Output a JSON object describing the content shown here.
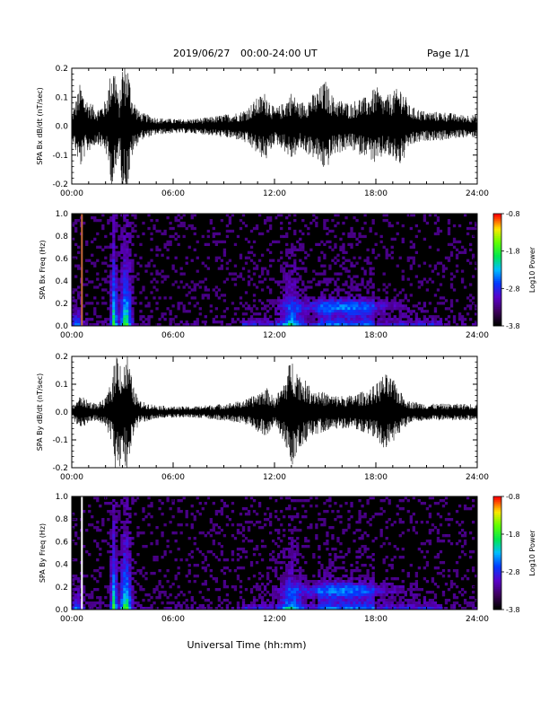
{
  "header": {
    "date": "2019/06/27",
    "time_range": "00:00-24:00 UT",
    "page": "Page 1/1"
  },
  "xlabel": "Universal Time (hh:mm)",
  "xticks": [
    "00:00",
    "06:00",
    "12:00",
    "18:00",
    "24:00"
  ],
  "colorbar": {
    "label": "Log10 Power",
    "ticks": [
      "-0.8",
      "-1.8",
      "-2.8",
      "-3.8"
    ],
    "range": [
      -3.8,
      -0.8
    ]
  },
  "chart_data": [
    {
      "type": "line",
      "ylabel": "SPA Bx dB/dt (nT/sec)",
      "xlim": [
        0,
        24
      ],
      "ylim": [
        -0.2,
        0.2
      ],
      "yticks": [
        "0.2",
        "0.1",
        "0.0",
        "-0.1",
        "-0.2"
      ],
      "envelope": {
        "hours": [
          0.0,
          0.5,
          0.8,
          1.5,
          2.0,
          2.4,
          2.6,
          2.8,
          3.0,
          3.3,
          3.6,
          4.0,
          5.0,
          6.0,
          7.0,
          8.0,
          9.0,
          10.0,
          10.5,
          11.0,
          11.5,
          12.0,
          12.5,
          13.0,
          13.5,
          14.0,
          14.5,
          15.0,
          15.5,
          16.0,
          16.5,
          17.0,
          17.5,
          18.0,
          18.5,
          19.0,
          19.5,
          20.0,
          21.0,
          22.0,
          23.0,
          24.0
        ],
        "amplitude": [
          0.04,
          0.15,
          0.1,
          0.06,
          0.09,
          0.22,
          0.2,
          0.08,
          0.22,
          0.22,
          0.1,
          0.05,
          0.03,
          0.025,
          0.025,
          0.03,
          0.04,
          0.05,
          0.07,
          0.1,
          0.12,
          0.06,
          0.08,
          0.12,
          0.08,
          0.1,
          0.12,
          0.16,
          0.1,
          0.09,
          0.08,
          0.1,
          0.1,
          0.14,
          0.1,
          0.12,
          0.14,
          0.07,
          0.05,
          0.05,
          0.04,
          0.04
        ]
      }
    },
    {
      "type": "heatmap",
      "ylabel": "SPA Bx Freq (Hz)",
      "xlim": [
        0,
        24
      ],
      "ylim": [
        0.0,
        1.0
      ],
      "yticks": [
        "1.0",
        "0.8",
        "0.6",
        "0.4",
        "0.2",
        "0.0"
      ],
      "colorbar_label": "Log10 Power",
      "value_range": [
        -3.8,
        -0.8
      ]
    },
    {
      "type": "line",
      "ylabel": "SPA By dB/dt (nT/sec)",
      "xlim": [
        0,
        24
      ],
      "ylim": [
        -0.2,
        0.2
      ],
      "yticks": [
        "0.2",
        "0.1",
        "0.0",
        "-0.1",
        "-0.2"
      ],
      "envelope": {
        "hours": [
          0.0,
          0.5,
          1.0,
          1.5,
          2.0,
          2.4,
          2.6,
          2.8,
          3.0,
          3.3,
          3.6,
          4.0,
          5.0,
          6.0,
          7.0,
          8.0,
          9.0,
          10.0,
          10.5,
          11.0,
          11.5,
          12.0,
          12.5,
          13.0,
          13.5,
          14.0,
          14.5,
          15.0,
          15.5,
          16.0,
          16.5,
          17.0,
          17.5,
          18.0,
          18.5,
          19.0,
          19.5,
          20.0,
          21.0,
          22.0,
          23.0,
          24.0
        ],
        "amplitude": [
          0.02,
          0.06,
          0.04,
          0.03,
          0.05,
          0.12,
          0.22,
          0.22,
          0.15,
          0.22,
          0.1,
          0.04,
          0.025,
          0.02,
          0.02,
          0.025,
          0.03,
          0.04,
          0.05,
          0.07,
          0.09,
          0.05,
          0.1,
          0.2,
          0.14,
          0.1,
          0.08,
          0.07,
          0.06,
          0.06,
          0.06,
          0.07,
          0.08,
          0.1,
          0.14,
          0.12,
          0.07,
          0.04,
          0.03,
          0.03,
          0.03,
          0.03
        ]
      }
    },
    {
      "type": "heatmap",
      "ylabel": "SPA By Freq (Hz)",
      "xlim": [
        0,
        24
      ],
      "ylim": [
        0.0,
        1.0
      ],
      "yticks": [
        "1.0",
        "0.8",
        "0.6",
        "0.4",
        "0.2",
        "0.0"
      ],
      "colorbar_label": "Log10 Power",
      "value_range": [
        -3.8,
        -0.8
      ]
    }
  ]
}
